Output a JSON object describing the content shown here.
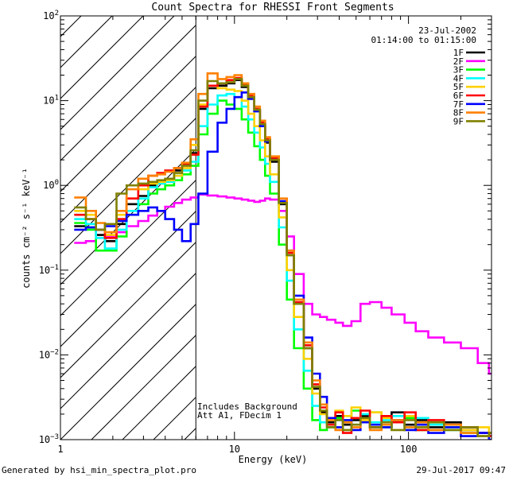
{
  "chart_data": {
    "type": "line",
    "title": "Count Spectra for RHESSI Front Segments",
    "xlabel": "Energy (keV)",
    "ylabel": "counts cm⁻² s⁻¹ keV⁻¹",
    "xscale": "log",
    "yscale": "log",
    "xlim": [
      1,
      300
    ],
    "ylim": [
      0.001,
      100
    ],
    "xticks": [
      {
        "value": 1,
        "label": "1"
      },
      {
        "value": 10,
        "label": "10"
      },
      {
        "value": 100,
        "label": "100"
      }
    ],
    "yticks": [
      {
        "value": 0.001,
        "base": "10",
        "exp": "−3"
      },
      {
        "value": 0.01,
        "base": "10",
        "exp": "−2"
      },
      {
        "value": 0.1,
        "base": "10",
        "exp": "−1"
      },
      {
        "value": 1,
        "base": "10",
        "exp": "0"
      },
      {
        "value": 10,
        "base": "10",
        "exp": "1"
      },
      {
        "value": 100,
        "base": "10",
        "exp": "2"
      }
    ],
    "hatched_region_below_keV": 6,
    "date": "23-Jul-2002",
    "time_range": "01:14:00 to 01:15:00",
    "annotations": [
      "Includes Background",
      "Att A1, FDecim 1"
    ],
    "footer_left": "Generated by hsi_min_spectra_plot.pro",
    "footer_right": "29-Jul-2017 09:47",
    "series": [
      {
        "name": "1F",
        "color": "#000000",
        "x": [
          1.2,
          1.4,
          1.6,
          1.8,
          2.1,
          2.4,
          2.8,
          3.2,
          3.6,
          4.0,
          4.5,
          5.0,
          5.6,
          6.2,
          7.0,
          8.0,
          9.0,
          10.0,
          11.0,
          12.0,
          13.0,
          14.0,
          15.0,
          16.0,
          18.0,
          20.0,
          22.0,
          25.0,
          28.0,
          31.0,
          34.0,
          38.0,
          42.0,
          47.0,
          53.0,
          60.0,
          70.0,
          80.0,
          95.0,
          110.0,
          130.0,
          160.0,
          200.0,
          250.0,
          290.0
        ],
        "y": [
          0.33,
          0.32,
          0.26,
          0.22,
          0.35,
          0.6,
          0.75,
          1.0,
          1.1,
          1.2,
          1.5,
          1.8,
          2.4,
          8.0,
          14.0,
          15.0,
          16.0,
          17.5,
          14.5,
          10.5,
          7.5,
          5.0,
          3.2,
          1.9,
          0.6,
          0.15,
          0.04,
          0.012,
          0.004,
          0.0021,
          0.0016,
          0.0019,
          0.0015,
          0.0017,
          0.0019,
          0.0014,
          0.0016,
          0.0021,
          0.0015,
          0.0017,
          0.0014,
          0.0016,
          0.0013,
          0.0012,
          0.0011
        ]
      },
      {
        "name": "2F",
        "color": "#ff00ff",
        "x": [
          1.2,
          1.4,
          1.6,
          1.8,
          2.1,
          2.4,
          2.8,
          3.2,
          3.6,
          4.0,
          4.5,
          5.0,
          5.6,
          6.2,
          7.0,
          8.0,
          9.0,
          10.0,
          11.0,
          12.0,
          13.0,
          14.0,
          15.0,
          16.0,
          18.0,
          20.0,
          22.0,
          25.0,
          28.0,
          31.0,
          34.0,
          38.0,
          42.0,
          47.0,
          53.0,
          60.0,
          70.0,
          80.0,
          95.0,
          110.0,
          130.0,
          160.0,
          200.0,
          250.0,
          290.0
        ],
        "y": [
          0.21,
          0.22,
          0.24,
          0.25,
          0.28,
          0.33,
          0.38,
          0.44,
          0.5,
          0.56,
          0.62,
          0.68,
          0.72,
          0.78,
          0.76,
          0.74,
          0.72,
          0.7,
          0.68,
          0.66,
          0.64,
          0.66,
          0.7,
          0.68,
          0.5,
          0.25,
          0.09,
          0.04,
          0.03,
          0.028,
          0.026,
          0.024,
          0.022,
          0.025,
          0.04,
          0.042,
          0.036,
          0.03,
          0.024,
          0.019,
          0.016,
          0.014,
          0.012,
          0.008,
          0.006
        ]
      },
      {
        "name": "3F",
        "color": "#00ff00",
        "x": [
          1.2,
          1.4,
          1.6,
          1.8,
          2.1,
          2.4,
          2.8,
          3.2,
          3.6,
          4.0,
          4.5,
          5.0,
          5.6,
          6.2,
          7.0,
          8.0,
          9.0,
          10.0,
          11.0,
          12.0,
          13.0,
          14.0,
          15.0,
          16.0,
          18.0,
          20.0,
          22.0,
          25.0,
          28.0,
          31.0,
          34.0,
          38.0,
          42.0,
          47.0,
          53.0,
          60.0,
          70.0,
          80.0,
          95.0,
          110.0,
          130.0,
          160.0,
          200.0,
          250.0,
          290.0
        ],
        "y": [
          0.36,
          0.3,
          0.17,
          0.17,
          0.25,
          0.45,
          0.6,
          0.8,
          0.9,
          1.0,
          1.15,
          1.35,
          1.7,
          4.0,
          7.0,
          10.0,
          9.0,
          8.0,
          6.0,
          4.2,
          2.9,
          2.0,
          1.3,
          0.8,
          0.2,
          0.045,
          0.012,
          0.004,
          0.0017,
          0.0013,
          0.0014,
          0.0018,
          0.0016,
          0.0022,
          0.0016,
          0.0021,
          0.0014,
          0.0016,
          0.0018,
          0.0013,
          0.0015,
          0.0014,
          0.0012,
          0.0011,
          0.0012
        ]
      },
      {
        "name": "4F",
        "color": "#00ffff",
        "x": [
          1.2,
          1.4,
          1.6,
          1.8,
          2.1,
          2.4,
          2.8,
          3.2,
          3.6,
          4.0,
          4.5,
          5.0,
          5.6,
          6.2,
          7.0,
          8.0,
          9.0,
          10.0,
          11.0,
          12.0,
          13.0,
          14.0,
          15.0,
          16.0,
          18.0,
          20.0,
          22.0,
          25.0,
          28.0,
          31.0,
          34.0,
          38.0,
          42.0,
          47.0,
          53.0,
          60.0,
          70.0,
          80.0,
          95.0,
          110.0,
          130.0,
          160.0,
          200.0,
          250.0,
          290.0
        ],
        "y": [
          0.4,
          0.35,
          0.24,
          0.18,
          0.3,
          0.5,
          0.7,
          0.95,
          1.05,
          1.1,
          1.3,
          1.5,
          1.9,
          5.0,
          9.0,
          11.5,
          12.0,
          11.0,
          8.5,
          6.0,
          4.2,
          2.8,
          1.8,
          1.1,
          0.32,
          0.075,
          0.02,
          0.0065,
          0.0025,
          0.0016,
          0.0014,
          0.0017,
          0.0019,
          0.0015,
          0.002,
          0.0016,
          0.0017,
          0.0019,
          0.0014,
          0.0018,
          0.0015,
          0.0013,
          0.0014,
          0.0011,
          0.0012
        ]
      },
      {
        "name": "5F",
        "color": "#ffd000",
        "x": [
          1.2,
          1.4,
          1.6,
          1.8,
          2.1,
          2.4,
          2.8,
          3.2,
          3.6,
          4.0,
          4.5,
          5.0,
          5.6,
          6.2,
          7.0,
          8.0,
          9.0,
          10.0,
          11.0,
          12.0,
          13.0,
          14.0,
          15.0,
          16.0,
          18.0,
          20.0,
          22.0,
          25.0,
          28.0,
          31.0,
          34.0,
          38.0,
          42.0,
          47.0,
          53.0,
          60.0,
          70.0,
          80.0,
          95.0,
          110.0,
          130.0,
          160.0,
          200.0,
          250.0,
          290.0
        ],
        "y": [
          0.5,
          0.45,
          0.3,
          0.26,
          0.45,
          0.7,
          0.9,
          1.05,
          1.1,
          1.15,
          1.3,
          1.6,
          3.0,
          9.0,
          15.0,
          14.0,
          13.5,
          13.0,
          10.0,
          7.0,
          5.0,
          3.4,
          2.2,
          1.35,
          0.42,
          0.1,
          0.028,
          0.009,
          0.0035,
          0.002,
          0.0018,
          0.0022,
          0.0019,
          0.0024,
          0.0017,
          0.0021,
          0.0018,
          0.0016,
          0.0019,
          0.0014,
          0.0016,
          0.0015,
          0.0013,
          0.0014,
          0.0012
        ]
      },
      {
        "name": "6F",
        "color": "#ff0000",
        "x": [
          1.2,
          1.4,
          1.6,
          1.8,
          2.1,
          2.4,
          2.8,
          3.2,
          3.6,
          4.0,
          4.5,
          5.0,
          5.6,
          6.2,
          7.0,
          8.0,
          9.0,
          10.0,
          11.0,
          12.0,
          13.0,
          14.0,
          15.0,
          16.0,
          18.0,
          20.0,
          22.0,
          25.0,
          28.0,
          31.0,
          34.0,
          38.0,
          42.0,
          47.0,
          53.0,
          60.0,
          70.0,
          80.0,
          95.0,
          110.0,
          130.0,
          160.0,
          200.0,
          250.0,
          290.0
        ],
        "y": [
          0.45,
          0.4,
          0.3,
          0.24,
          0.4,
          0.7,
          1.0,
          1.3,
          1.4,
          1.5,
          1.6,
          1.8,
          2.3,
          8.5,
          15.0,
          16.0,
          17.5,
          18.5,
          15.5,
          11.5,
          8.0,
          5.5,
          3.5,
          2.1,
          0.65,
          0.16,
          0.042,
          0.013,
          0.0045,
          0.0024,
          0.0015,
          0.0021,
          0.0012,
          0.0018,
          0.0022,
          0.0014,
          0.0019,
          0.0016,
          0.0021,
          0.0013,
          0.0017,
          0.0015,
          0.0014,
          0.0012,
          0.0011
        ]
      },
      {
        "name": "7F",
        "color": "#0000ff",
        "x": [
          1.2,
          1.4,
          1.6,
          1.8,
          2.1,
          2.4,
          2.8,
          3.2,
          3.6,
          4.0,
          4.5,
          5.0,
          5.6,
          6.2,
          7.0,
          8.0,
          9.0,
          10.0,
          11.0,
          12.0,
          13.0,
          14.0,
          15.0,
          16.0,
          18.0,
          20.0,
          22.0,
          25.0,
          28.0,
          31.0,
          34.0,
          38.0,
          42.0,
          47.0,
          53.0,
          60.0,
          70.0,
          80.0,
          95.0,
          110.0,
          130.0,
          160.0,
          200.0,
          250.0,
          290.0
        ],
        "y": [
          0.3,
          0.32,
          0.3,
          0.33,
          0.38,
          0.45,
          0.5,
          0.55,
          0.5,
          0.4,
          0.3,
          0.22,
          0.35,
          0.8,
          2.5,
          5.5,
          8.0,
          11.0,
          12.5,
          10.5,
          7.5,
          5.0,
          3.3,
          2.0,
          0.65,
          0.17,
          0.05,
          0.016,
          0.006,
          0.0032,
          0.0018,
          0.0014,
          0.0017,
          0.0013,
          0.0016,
          0.0015,
          0.0014,
          0.0017,
          0.0013,
          0.0015,
          0.0012,
          0.0014,
          0.0011,
          0.0012,
          0.001
        ]
      },
      {
        "name": "8F",
        "color": "#ff8000",
        "x": [
          1.2,
          1.4,
          1.6,
          1.8,
          2.1,
          2.4,
          2.8,
          3.2,
          3.6,
          4.0,
          4.5,
          5.0,
          5.6,
          6.2,
          7.0,
          8.0,
          9.0,
          10.0,
          11.0,
          12.0,
          13.0,
          14.0,
          15.0,
          16.0,
          18.0,
          20.0,
          22.0,
          25.0,
          28.0,
          31.0,
          34.0,
          38.0,
          42.0,
          47.0,
          53.0,
          60.0,
          70.0,
          80.0,
          95.0,
          110.0,
          130.0,
          160.0,
          200.0,
          250.0,
          290.0
        ],
        "y": [
          0.72,
          0.5,
          0.36,
          0.28,
          0.5,
          0.9,
          1.2,
          1.3,
          1.35,
          1.45,
          1.6,
          1.85,
          3.5,
          12.0,
          21.0,
          18.0,
          19.0,
          20.0,
          16.0,
          12.0,
          8.5,
          5.8,
          3.7,
          2.2,
          0.7,
          0.17,
          0.045,
          0.014,
          0.005,
          0.0026,
          0.0017,
          0.0013,
          0.0016,
          0.0014,
          0.0018,
          0.0013,
          0.0015,
          0.0017,
          0.0014,
          0.0016,
          0.0013,
          0.0015,
          0.0012,
          0.0011,
          0.0012
        ]
      },
      {
        "name": "9F",
        "color": "#808000",
        "x": [
          1.2,
          1.4,
          1.6,
          1.8,
          2.1,
          2.4,
          2.8,
          3.2,
          3.6,
          4.0,
          4.5,
          5.0,
          5.6,
          6.2,
          7.0,
          8.0,
          9.0,
          10.0,
          11.0,
          12.0,
          13.0,
          14.0,
          15.0,
          16.0,
          18.0,
          20.0,
          22.0,
          25.0,
          28.0,
          31.0,
          34.0,
          38.0,
          42.0,
          47.0,
          53.0,
          60.0,
          70.0,
          80.0,
          95.0,
          110.0,
          130.0,
          160.0,
          200.0,
          250.0,
          290.0
        ],
        "y": [
          0.55,
          0.4,
          0.3,
          0.35,
          0.8,
          1.0,
          1.05,
          1.1,
          1.15,
          1.2,
          1.4,
          1.7,
          2.6,
          10.0,
          17.0,
          16.0,
          16.5,
          18.0,
          15.0,
          11.0,
          7.8,
          5.3,
          3.4,
          2.0,
          0.62,
          0.15,
          0.04,
          0.012,
          0.0042,
          0.0022,
          0.0014,
          0.0017,
          0.0013,
          0.0015,
          0.0018,
          0.0014,
          0.0016,
          0.0013,
          0.0017,
          0.0014,
          0.0016,
          0.0013,
          0.0014,
          0.0011,
          0.0012
        ]
      }
    ]
  }
}
